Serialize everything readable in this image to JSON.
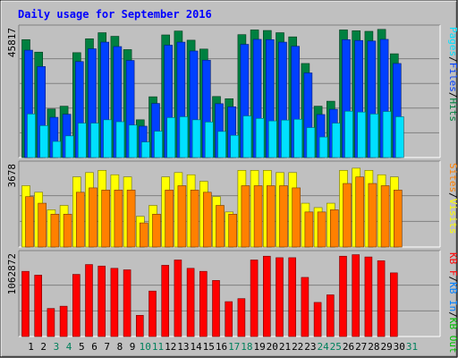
{
  "title": "Daily usage for September 2016",
  "colors": {
    "background": "#c0c0c0",
    "title": "#0000ff",
    "hits": "#008040",
    "files": "#0040ff",
    "pages": "#00e0ff",
    "visits": "#ffff00",
    "sites": "#ff8000",
    "kbin": "#0080ff",
    "kbout": "#00c000",
    "kbf": "#ff0000",
    "weekday_label": "#000000",
    "weekend_label": "#00805c"
  },
  "chart_data": [
    {
      "type": "bar",
      "panel": "hits-files-pages",
      "ymax_label": "45817",
      "ylim": [
        0,
        45817
      ],
      "right_legend": [
        {
          "text": "Pages",
          "color": "pages"
        },
        {
          "text": "/",
          "color": "weekday_label"
        },
        {
          "text": "Files",
          "color": "files"
        },
        {
          "text": "/",
          "color": "weekday_label"
        },
        {
          "text": "Hits",
          "color": "hits"
        }
      ],
      "series": [
        {
          "name": "Hits",
          "color": "hits",
          "values": [
            42500,
            38000,
            17500,
            18500,
            37800,
            42800,
            45000,
            43700,
            38900,
            13600,
            21900,
            44200,
            45600,
            42300,
            39100,
            22000,
            21200,
            44300,
            46000,
            45800,
            45000,
            43500,
            33900,
            18500,
            20300,
            46000,
            45700,
            45500,
            46200,
            37400
          ]
        },
        {
          "name": "Files",
          "color": "files",
          "values": [
            38700,
            32800,
            14500,
            15600,
            34600,
            39200,
            41600,
            40000,
            35000,
            11300,
            19500,
            40500,
            41600,
            38400,
            35100,
            19400,
            18300,
            40800,
            42600,
            42500,
            41600,
            40100,
            30500,
            15500,
            17400,
            42500,
            42200,
            42000,
            42600,
            33900
          ]
        },
        {
          "name": "Pages",
          "color": "pages",
          "values": [
            15700,
            11500,
            5800,
            7800,
            12400,
            12400,
            13600,
            12900,
            11700,
            5600,
            9500,
            14400,
            14700,
            13600,
            12800,
            9400,
            8000,
            15000,
            14100,
            13200,
            13500,
            13800,
            10800,
            7400,
            12400,
            16700,
            16400,
            15700,
            16600,
            14700
          ]
        }
      ]
    },
    {
      "type": "bar",
      "panel": "visits-sites",
      "ymax_label": "3678",
      "ylim": [
        0,
        3678
      ],
      "right_legend": [
        {
          "text": "Sites",
          "color": "sites"
        },
        {
          "text": "/",
          "color": "weekday_label"
        },
        {
          "text": "Visits",
          "color": "visits"
        }
      ],
      "series": [
        {
          "name": "Visits",
          "color": "visits",
          "values": [
            2800,
            2500,
            1700,
            1900,
            3200,
            3400,
            3500,
            3300,
            3200,
            1400,
            1900,
            3200,
            3400,
            3300,
            3000,
            2300,
            1600,
            3500,
            3500,
            3500,
            3400,
            3400,
            2000,
            1800,
            2000,
            3500,
            3600,
            3500,
            3300,
            3200
          ]
        },
        {
          "name": "Sites",
          "color": "sites",
          "values": [
            2300,
            2000,
            1500,
            1500,
            2500,
            2700,
            2600,
            2600,
            2600,
            1100,
            1500,
            2600,
            2800,
            2600,
            2500,
            1900,
            1500,
            2800,
            2800,
            2800,
            2800,
            2700,
            1600,
            1600,
            1700,
            2900,
            3200,
            2900,
            2800,
            2600
          ]
        }
      ]
    },
    {
      "type": "bar",
      "panel": "kbytes",
      "ymax_label": "1062872",
      "ylim": [
        0,
        1062872
      ],
      "right_legend": [
        {
          "text": "KB F",
          "color": "kbf"
        },
        {
          "text": "/",
          "color": "weekday_label"
        },
        {
          "text": "KB In",
          "color": "kbin"
        },
        {
          "text": "/",
          "color": "weekday_label"
        },
        {
          "text": "KB Out",
          "color": "kbout"
        }
      ],
      "series": [
        {
          "name": "KB F",
          "color": "kbf",
          "values": [
            860000,
            810000,
            370000,
            400000,
            820000,
            950000,
            930000,
            900000,
            880000,
            280000,
            600000,
            940000,
            1010000,
            900000,
            860000,
            740000,
            460000,
            500000,
            1010000,
            1060000,
            1040000,
            1040000,
            780000,
            450000,
            550000,
            1060000,
            1080000,
            1050000,
            1000000,
            840000
          ]
        }
      ]
    }
  ],
  "days": [
    {
      "label": "1",
      "weekend": false
    },
    {
      "label": "2",
      "weekend": false
    },
    {
      "label": "3",
      "weekend": true
    },
    {
      "label": "4",
      "weekend": true
    },
    {
      "label": "5",
      "weekend": false
    },
    {
      "label": "6",
      "weekend": false
    },
    {
      "label": "7",
      "weekend": false
    },
    {
      "label": "8",
      "weekend": false
    },
    {
      "label": "9",
      "weekend": false
    },
    {
      "label": "10",
      "weekend": true
    },
    {
      "label": "11",
      "weekend": true
    },
    {
      "label": "12",
      "weekend": false
    },
    {
      "label": "13",
      "weekend": false
    },
    {
      "label": "14",
      "weekend": false
    },
    {
      "label": "15",
      "weekend": false
    },
    {
      "label": "16",
      "weekend": false
    },
    {
      "label": "17",
      "weekend": true
    },
    {
      "label": "18",
      "weekend": true
    },
    {
      "label": "19",
      "weekend": false
    },
    {
      "label": "20",
      "weekend": false
    },
    {
      "label": "21",
      "weekend": false
    },
    {
      "label": "22",
      "weekend": false
    },
    {
      "label": "23",
      "weekend": false
    },
    {
      "label": "24",
      "weekend": true
    },
    {
      "label": "25",
      "weekend": true
    },
    {
      "label": "26",
      "weekend": false
    },
    {
      "label": "27",
      "weekend": false
    },
    {
      "label": "28",
      "weekend": false
    },
    {
      "label": "29",
      "weekend": false
    },
    {
      "label": "30",
      "weekend": false
    },
    {
      "label": "31",
      "weekend": true
    }
  ]
}
